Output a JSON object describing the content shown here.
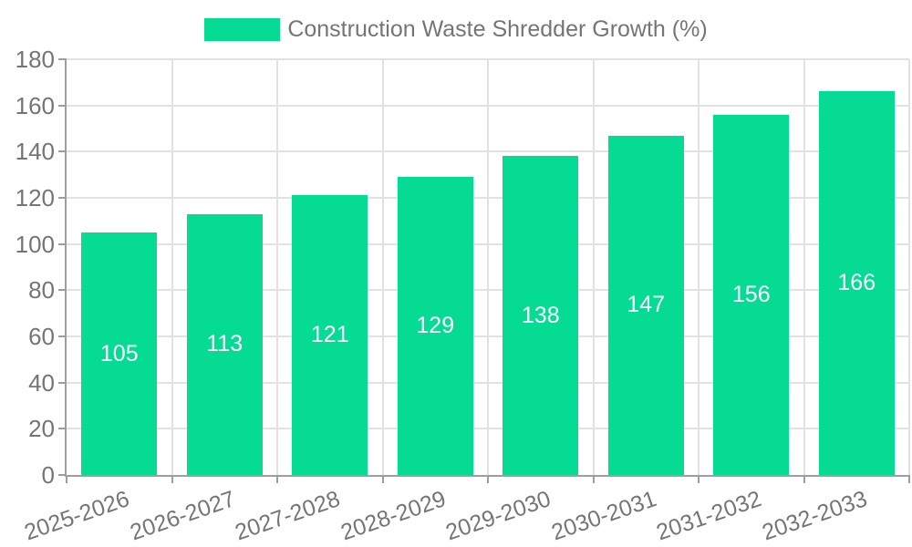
{
  "legend": {
    "label": "Construction Waste Shredder Growth (%)"
  },
  "colors": {
    "bar": "#05DB92",
    "bar_label_text": "#FFFFFF",
    "axis_line": "#9E9E9E",
    "gridline": "#E2E2E2",
    "label_text": "#757575",
    "background": "#FFFFFF"
  },
  "chart_data": {
    "type": "bar",
    "title": "Construction Waste Shredder Growth (%)",
    "series_name": "Construction Waste Shredder Growth (%)",
    "categories": [
      "2025-2026",
      "2026-2027",
      "2027-2028",
      "2028-2029",
      "2029-2030",
      "2030-2031",
      "2031-2032",
      "2032-2033"
    ],
    "values": [
      105,
      113,
      121,
      129,
      138,
      147,
      156,
      166
    ],
    "xlabel": "",
    "ylabel": "",
    "ylim": [
      0,
      180
    ],
    "ytick_step": 20,
    "yticks": [
      0,
      20,
      40,
      60,
      80,
      100,
      120,
      140,
      160,
      180
    ],
    "grid": true,
    "legend_position": "top-center",
    "bar_label_position": "inside-center",
    "x_tick_label_rotation_deg": -19
  }
}
